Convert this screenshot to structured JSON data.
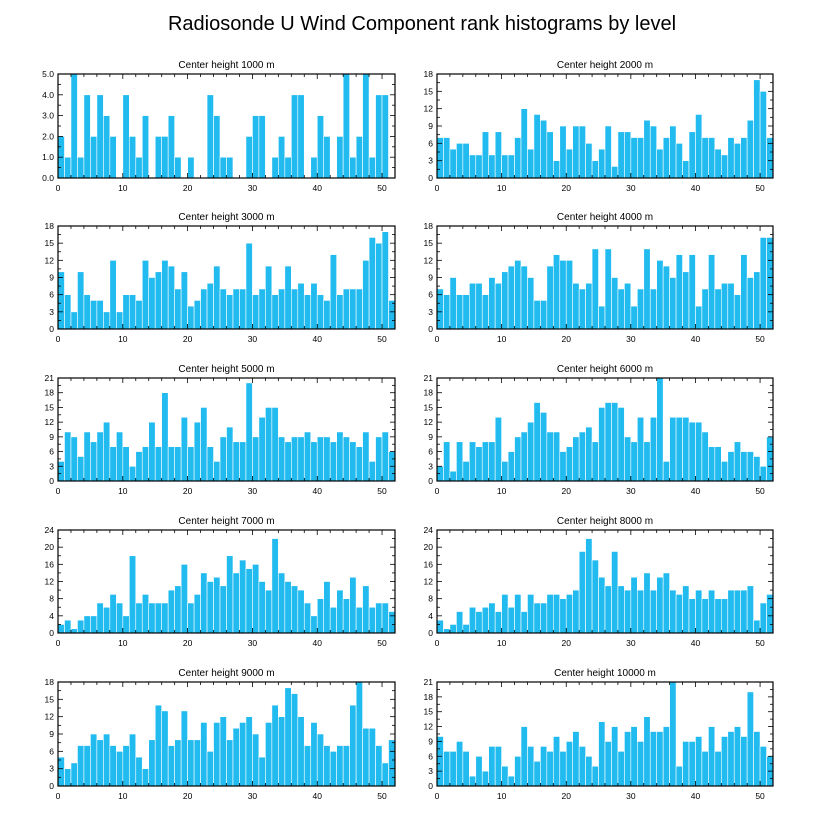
{
  "figure_title": "Radiosonde U Wind Component rank histograms by level",
  "chart_data": [
    {
      "type": "bar",
      "title": "Center height 1000 m",
      "xlim": [
        0,
        52
      ],
      "xticks": [
        0,
        10,
        20,
        30,
        40,
        50
      ],
      "ylim": [
        0,
        5
      ],
      "yticks": [
        0,
        1,
        2,
        3,
        4,
        5
      ],
      "ytick_labels": [
        "0.0",
        "1.0",
        "2.0",
        "3.0",
        "4.0",
        "5.0"
      ],
      "values": [
        2,
        1,
        5,
        1,
        4,
        2,
        4,
        3,
        2,
        0,
        4,
        2,
        1,
        3,
        0,
        2,
        2,
        3,
        1,
        0,
        1,
        0,
        0,
        4,
        3,
        1,
        1,
        0,
        0,
        2,
        3,
        3,
        0,
        1,
        2,
        1,
        4,
        4,
        0,
        1,
        3,
        2,
        0,
        2,
        5,
        1,
        2,
        5,
        1,
        4,
        4,
        0
      ]
    },
    {
      "type": "bar",
      "title": "Center height 2000 m",
      "xlim": [
        0,
        52
      ],
      "xticks": [
        0,
        10,
        20,
        30,
        40,
        50
      ],
      "ylim": [
        0,
        18
      ],
      "yticks": [
        0,
        3,
        6,
        9,
        12,
        15,
        18
      ],
      "ytick_labels": [
        "0",
        "3",
        "6",
        "9",
        "12",
        "15",
        "18"
      ],
      "values": [
        7,
        7,
        5,
        6,
        6,
        4,
        4,
        8,
        4,
        8,
        4,
        4,
        7,
        12,
        5,
        11,
        10,
        8,
        3,
        9,
        5,
        9,
        9,
        6,
        3,
        5,
        9,
        2,
        8,
        8,
        7,
        7,
        10,
        9,
        5,
        7,
        9,
        6,
        3,
        8,
        11,
        7,
        7,
        5,
        4,
        7,
        6,
        7,
        10,
        17,
        15,
        7
      ]
    },
    {
      "type": "bar",
      "title": "Center height 3000 m",
      "xlim": [
        0,
        52
      ],
      "xticks": [
        0,
        10,
        20,
        30,
        40,
        50
      ],
      "ylim": [
        0,
        18
      ],
      "yticks": [
        0,
        3,
        6,
        9,
        12,
        15,
        18
      ],
      "ytick_labels": [
        "0",
        "3",
        "6",
        "9",
        "12",
        "15",
        "18"
      ],
      "values": [
        10,
        6,
        3,
        10,
        6,
        5,
        5,
        3,
        12,
        3,
        6,
        6,
        5,
        12,
        9,
        10,
        12,
        11,
        7,
        10,
        4,
        5,
        7,
        8,
        11,
        7,
        6,
        7,
        7,
        15,
        6,
        7,
        11,
        6,
        7,
        11,
        7,
        8,
        6,
        8,
        6,
        5,
        13,
        6,
        7,
        7,
        7,
        12,
        16,
        15,
        17,
        5
      ]
    },
    {
      "type": "bar",
      "title": "Center height 4000 m",
      "xlim": [
        0,
        52
      ],
      "xticks": [
        0,
        10,
        20,
        30,
        40,
        50
      ],
      "ylim": [
        0,
        18
      ],
      "yticks": [
        0,
        3,
        6,
        9,
        12,
        15,
        18
      ],
      "ytick_labels": [
        "0",
        "3",
        "6",
        "9",
        "12",
        "15",
        "18"
      ],
      "values": [
        7,
        6,
        9,
        6,
        6,
        8,
        8,
        6,
        9,
        8,
        10,
        11,
        12,
        11,
        9,
        5,
        5,
        11,
        13,
        12,
        12,
        8,
        7,
        8,
        14,
        4,
        14,
        9,
        7,
        8,
        4,
        7,
        14,
        7,
        12,
        11,
        9,
        13,
        10,
        13,
        4,
        7,
        13,
        7,
        8,
        8,
        6,
        13,
        9,
        10,
        16,
        16
      ]
    },
    {
      "type": "bar",
      "title": "Center height 5000 m",
      "xlim": [
        0,
        52
      ],
      "xticks": [
        0,
        10,
        20,
        30,
        40,
        50
      ],
      "ylim": [
        0,
        21
      ],
      "yticks": [
        0,
        3,
        6,
        9,
        12,
        15,
        18,
        21
      ],
      "ytick_labels": [
        "0",
        "3",
        "6",
        "9",
        "12",
        "15",
        "18",
        "21"
      ],
      "values": [
        4,
        10,
        9,
        5,
        10,
        8,
        10,
        12,
        7,
        10,
        7,
        3,
        6,
        7,
        12,
        7,
        18,
        7,
        7,
        13,
        7,
        12,
        15,
        7,
        4,
        9,
        11,
        8,
        8,
        20,
        9,
        13,
        15,
        15,
        9,
        8,
        9,
        9,
        10,
        8,
        9,
        9,
        8,
        10,
        9,
        8,
        7,
        10,
        4,
        9,
        10,
        6
      ]
    },
    {
      "type": "bar",
      "title": "Center height 6000 m",
      "xlim": [
        0,
        52
      ],
      "xticks": [
        0,
        10,
        20,
        30,
        40,
        50
      ],
      "ylim": [
        0,
        21
      ],
      "yticks": [
        0,
        3,
        6,
        9,
        12,
        15,
        18,
        21
      ],
      "ytick_labels": [
        "0",
        "3",
        "6",
        "9",
        "12",
        "15",
        "18",
        "21"
      ],
      "values": [
        3,
        8,
        2,
        8,
        4,
        8,
        7,
        8,
        8,
        13,
        4,
        6,
        9,
        10,
        12,
        16,
        14,
        10,
        10,
        6,
        7,
        9,
        10,
        11,
        8,
        15,
        16,
        16,
        15,
        9,
        8,
        13,
        8,
        13,
        21,
        4,
        13,
        13,
        13,
        12,
        12,
        10,
        7,
        7,
        4,
        6,
        8,
        6,
        6,
        5,
        3,
        9
      ]
    },
    {
      "type": "bar",
      "title": "Center height 7000 m",
      "xlim": [
        0,
        52
      ],
      "xticks": [
        0,
        10,
        20,
        30,
        40,
        50
      ],
      "ylim": [
        0,
        24
      ],
      "yticks": [
        0,
        4,
        8,
        12,
        16,
        20,
        24
      ],
      "ytick_labels": [
        "0",
        "4",
        "8",
        "12",
        "16",
        "20",
        "24"
      ],
      "values": [
        2,
        3,
        1,
        3,
        4,
        4,
        7,
        6,
        9,
        7,
        4,
        18,
        7,
        9,
        7,
        7,
        7,
        10,
        11,
        16,
        7,
        9,
        14,
        12,
        13,
        11,
        18,
        14,
        17,
        15,
        16,
        12,
        10,
        22,
        14,
        12,
        11,
        10,
        7,
        4,
        8,
        12,
        6,
        10,
        8,
        13,
        6,
        11,
        6,
        7,
        7,
        5
      ]
    },
    {
      "type": "bar",
      "title": "Center height 8000 m",
      "xlim": [
        0,
        52
      ],
      "xticks": [
        0,
        10,
        20,
        30,
        40,
        50
      ],
      "ylim": [
        0,
        24
      ],
      "yticks": [
        0,
        4,
        8,
        12,
        16,
        20,
        24
      ],
      "ytick_labels": [
        "0",
        "4",
        "8",
        "12",
        "16",
        "20",
        "24"
      ],
      "values": [
        3,
        1,
        2,
        5,
        2,
        6,
        5,
        6,
        7,
        5,
        9,
        6,
        9,
        5,
        9,
        7,
        7,
        9,
        9,
        8,
        9,
        10,
        19,
        22,
        17,
        13,
        11,
        19,
        11,
        10,
        13,
        10,
        14,
        10,
        13,
        14,
        10,
        9,
        11,
        8,
        10,
        8,
        10,
        8,
        8,
        10,
        10,
        10,
        11,
        3,
        7,
        9
      ]
    },
    {
      "type": "bar",
      "title": "Center height 9000 m",
      "xlim": [
        0,
        52
      ],
      "xticks": [
        0,
        10,
        20,
        30,
        40,
        50
      ],
      "ylim": [
        0,
        18
      ],
      "yticks": [
        0,
        3,
        6,
        9,
        12,
        15,
        18
      ],
      "ytick_labels": [
        "0",
        "3",
        "6",
        "9",
        "12",
        "15",
        "18"
      ],
      "values": [
        5,
        3,
        4,
        7,
        7,
        9,
        8,
        9,
        7,
        6,
        7,
        9,
        5,
        3,
        8,
        14,
        13,
        7,
        8,
        13,
        8,
        8,
        11,
        6,
        11,
        12,
        8,
        10,
        11,
        12,
        9,
        5,
        11,
        14,
        12,
        17,
        16,
        12,
        7,
        11,
        9,
        7,
        6,
        7,
        7,
        14,
        18,
        10,
        10,
        7,
        4,
        8
      ]
    },
    {
      "type": "bar",
      "title": "Center height 10000 m",
      "xlim": [
        0,
        52
      ],
      "xticks": [
        0,
        10,
        20,
        30,
        40,
        50
      ],
      "ylim": [
        0,
        21
      ],
      "yticks": [
        0,
        3,
        6,
        9,
        12,
        15,
        18,
        21
      ],
      "ytick_labels": [
        "0",
        "3",
        "6",
        "9",
        "12",
        "15",
        "18",
        "21"
      ],
      "values": [
        10,
        7,
        7,
        9,
        7,
        2,
        6,
        3,
        8,
        8,
        4,
        2,
        6,
        12,
        8,
        5,
        8,
        7,
        10,
        7,
        9,
        11,
        8,
        6,
        4,
        13,
        9,
        12,
        7,
        11,
        12,
        9,
        14,
        11,
        11,
        12,
        21,
        4,
        9,
        9,
        10,
        7,
        12,
        7,
        10,
        11,
        12,
        10,
        19,
        11,
        8,
        6
      ]
    }
  ]
}
